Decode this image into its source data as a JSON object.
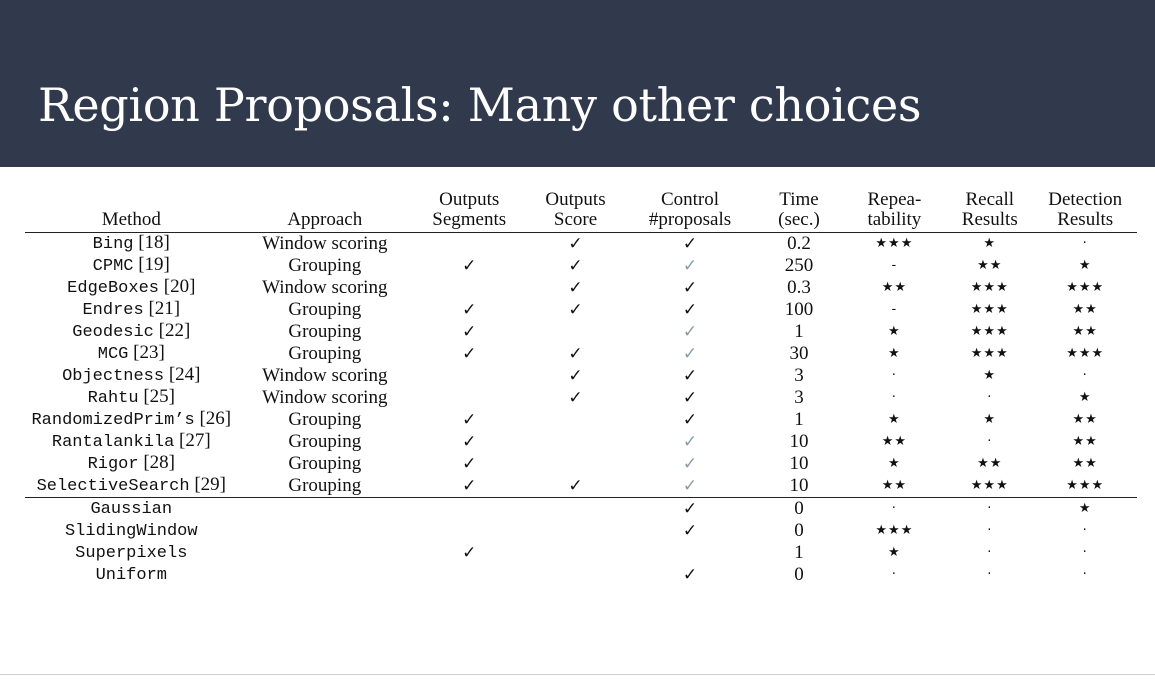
{
  "title": "Region Proposals: Many other choices",
  "table": {
    "headers": [
      {
        "line1": "Method",
        "line2": ""
      },
      {
        "line1": "Approach",
        "line2": ""
      },
      {
        "line1": "Outputs",
        "line2": "Segments"
      },
      {
        "line1": "Outputs",
        "line2": "Score"
      },
      {
        "line1": "Control",
        "line2": "#proposals"
      },
      {
        "line1": "Time",
        "line2": "(sec.)"
      },
      {
        "line1": "Repea-",
        "line2": "tability"
      },
      {
        "line1": "Recall",
        "line2": "Results"
      },
      {
        "line1": "Detection",
        "line2": "Results"
      }
    ],
    "rows": [
      {
        "method": "Bing",
        "ref": "[18]",
        "approach": "Window scoring",
        "segments": "",
        "score": "✓",
        "control": "✓",
        "control_gray": false,
        "time": "0.2",
        "repeat": "★★★",
        "recall": "★",
        "detection": "·"
      },
      {
        "method": "CPMC",
        "ref": "[19]",
        "approach": "Grouping",
        "segments": "✓",
        "score": "✓",
        "control": "✓",
        "control_gray": true,
        "time": "250",
        "repeat": "-",
        "recall": "★★",
        "detection": "★"
      },
      {
        "method": "EdgeBoxes",
        "ref": "[20]",
        "approach": "Window scoring",
        "segments": "",
        "score": "✓",
        "control": "✓",
        "control_gray": false,
        "time": "0.3",
        "repeat": "★★",
        "recall": "★★★",
        "detection": "★★★"
      },
      {
        "method": "Endres",
        "ref": "[21]",
        "approach": "Grouping",
        "segments": "✓",
        "score": "✓",
        "control": "✓",
        "control_gray": false,
        "time": "100",
        "repeat": "-",
        "recall": "★★★",
        "detection": "★★"
      },
      {
        "method": "Geodesic",
        "ref": "[22]",
        "approach": "Grouping",
        "segments": "✓",
        "score": "",
        "control": "✓",
        "control_gray": true,
        "time": "1",
        "repeat": "★",
        "recall": "★★★",
        "detection": "★★"
      },
      {
        "method": "MCG",
        "ref": "[23]",
        "approach": "Grouping",
        "segments": "✓",
        "score": "✓",
        "control": "✓",
        "control_gray": true,
        "time": "30",
        "repeat": "★",
        "recall": "★★★",
        "detection": "★★★"
      },
      {
        "method": "Objectness",
        "ref": "[24]",
        "approach": "Window scoring",
        "segments": "",
        "score": "✓",
        "control": "✓",
        "control_gray": false,
        "time": "3",
        "repeat": "·",
        "recall": "★",
        "detection": "·"
      },
      {
        "method": "Rahtu",
        "ref": "[25]",
        "approach": "Window scoring",
        "segments": "",
        "score": "✓",
        "control": "✓",
        "control_gray": false,
        "time": "3",
        "repeat": "·",
        "recall": "·",
        "detection": "★"
      },
      {
        "method": "RandomizedPrim’s",
        "ref": "[26]",
        "approach": "Grouping",
        "segments": "✓",
        "score": "",
        "control": "✓",
        "control_gray": false,
        "time": "1",
        "repeat": "★",
        "recall": "★",
        "detection": "★★"
      },
      {
        "method": "Rantalankila",
        "ref": "[27]",
        "approach": "Grouping",
        "segments": "✓",
        "score": "",
        "control": "✓",
        "control_gray": true,
        "time": "10",
        "repeat": "★★",
        "recall": "·",
        "detection": "★★"
      },
      {
        "method": "Rigor",
        "ref": "[28]",
        "approach": "Grouping",
        "segments": "✓",
        "score": "",
        "control": "✓",
        "control_gray": true,
        "time": "10",
        "repeat": "★",
        "recall": "★★",
        "detection": "★★"
      },
      {
        "method": "SelectiveSearch",
        "ref": "[29]",
        "approach": "Grouping",
        "segments": "✓",
        "score": "✓",
        "control": "✓",
        "control_gray": true,
        "time": "10",
        "repeat": "★★",
        "recall": "★★★",
        "detection": "★★★"
      }
    ],
    "baselines": [
      {
        "method": "Gaussian",
        "ref": "",
        "approach": "",
        "segments": "",
        "score": "",
        "control": "✓",
        "control_gray": false,
        "time": "0",
        "repeat": "·",
        "recall": "·",
        "detection": "★"
      },
      {
        "method": "SlidingWindow",
        "ref": "",
        "approach": "",
        "segments": "",
        "score": "",
        "control": "✓",
        "control_gray": false,
        "time": "0",
        "repeat": "★★★",
        "recall": "·",
        "detection": "·"
      },
      {
        "method": "Superpixels",
        "ref": "",
        "approach": "",
        "segments": "✓",
        "score": "",
        "control": "",
        "control_gray": false,
        "time": "1",
        "repeat": "★",
        "recall": "·",
        "detection": "·"
      },
      {
        "method": "Uniform",
        "ref": "",
        "approach": "",
        "segments": "",
        "score": "",
        "control": "✓",
        "control_gray": false,
        "time": "0",
        "repeat": "·",
        "recall": "·",
        "detection": "·"
      }
    ]
  }
}
